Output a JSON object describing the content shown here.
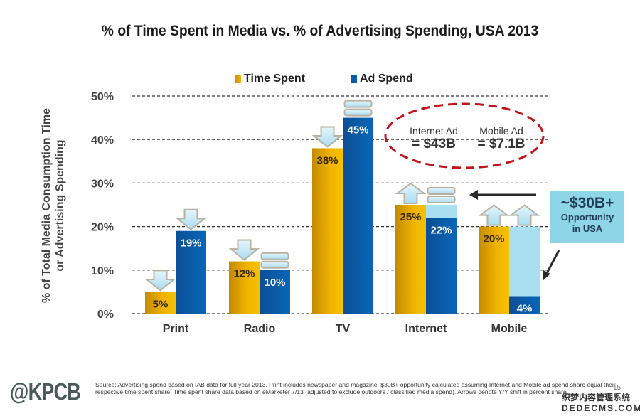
{
  "chart_data": {
    "type": "bar",
    "title": "% of Time Spent in Media vs. % of Advertising Spending, USA 2013",
    "xlabel": "",
    "ylabel": "% of Total Media Consumption Time or Advertising Spending",
    "ylabel_lines": [
      "% of Total Media Consumption Time",
      "or Advertising Spending"
    ],
    "ylim": [
      0,
      50
    ],
    "yticks": [
      0,
      10,
      20,
      30,
      40,
      50
    ],
    "ytick_labels": [
      "0%",
      "10%",
      "20%",
      "30%",
      "40%",
      "50%"
    ],
    "grid": true,
    "legend_position": "top-center",
    "categories": [
      "Print",
      "Radio",
      "TV",
      "Internet",
      "Mobile"
    ],
    "series": [
      {
        "name": "Time Spent",
        "color": "#e8a800",
        "values": [
          5,
          12,
          38,
          25,
          20
        ],
        "labels": [
          "5%",
          "12%",
          "38%",
          "25%",
          "20%"
        ],
        "yoy_shift": [
          "down",
          "down",
          "down",
          "up",
          "up"
        ]
      },
      {
        "name": "Ad Spend",
        "color": "#0a5ca8",
        "values": [
          19,
          10,
          45,
          22,
          4
        ],
        "labels": [
          "19%",
          "10%",
          "45%",
          "22%",
          "4%"
        ],
        "yoy_shift": [
          "down",
          "flat",
          "flat",
          "flat",
          "up"
        ]
      }
    ],
    "gap_fill": {
      "color": "#a9dff0",
      "note": "Light fill shows Ad Spend gap up to Time Spent share",
      "targets": [
        null,
        null,
        null,
        25,
        20
      ]
    },
    "annotations": {
      "oval": {
        "items": [
          {
            "label": "Internet Ad",
            "value": "= $43B"
          },
          {
            "label": "Mobile Ad",
            "value": "= $7.1B"
          }
        ],
        "color": "#c0141c"
      },
      "opportunity": {
        "headline": "~$30B+",
        "line1": "Opportunity",
        "line2": "in USA",
        "color": "#8fd5e8"
      }
    }
  },
  "footer": {
    "logo": "@KPCB",
    "source": "Source: Advertising spend based on IAB data for full year 2013. Print includes newspaper and magazine. $30B+ opportunity calculated assuming Internet and Mobile ad spend share equal their respective time spent share. Time spent share data based on eMarketer 7/13 (adjusted to exclude outdoors / classified media spend). Arrows denote Y/Y shift in percent share.",
    "page_number": "15",
    "watermark_line1": "织梦内容管理系统",
    "watermark_line2": "DEDECMS.COM"
  }
}
